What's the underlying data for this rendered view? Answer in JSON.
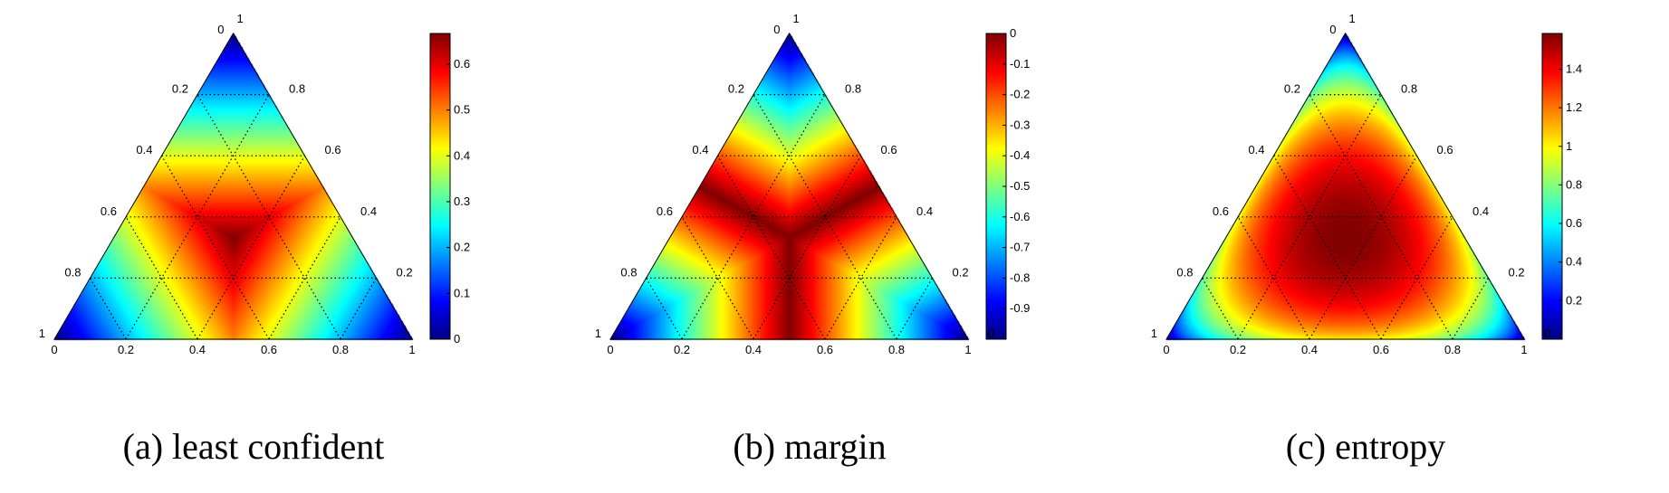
{
  "chart_data": [
    {
      "type": "heatmap",
      "subtype": "ternary",
      "caption": "(a) least confident",
      "colormap": "jet",
      "grid": true,
      "value_range": [
        0,
        0.667
      ],
      "colorbar": {
        "ticks": [
          "0",
          "0.1",
          "0.2",
          "0.3",
          "0.4",
          "0.5",
          "0.6"
        ],
        "tick_values": [
          0,
          0.1,
          0.2,
          0.3,
          0.4,
          0.5,
          0.6
        ]
      },
      "left_axis_labels": [
        "0",
        "0.2",
        "0.4",
        "0.6",
        "0.8",
        "1"
      ],
      "right_axis_labels": [
        "1",
        "0.8",
        "0.6",
        "0.4",
        "0.2"
      ],
      "bottom_axis_labels": [
        "0",
        "0.2",
        "0.4",
        "0.6",
        "0.8",
        "1"
      ],
      "measure": "least_confident"
    },
    {
      "type": "heatmap",
      "subtype": "ternary",
      "caption": "(b) margin",
      "colormap": "jet",
      "grid": true,
      "value_range": [
        -1,
        0
      ],
      "colorbar": {
        "ticks": [
          "0",
          "-0.1",
          "-0.2",
          "-0.3",
          "-0.4",
          "-0.5",
          "-0.6",
          "-0.7",
          "-0.8",
          "-0.9"
        ],
        "tick_values": [
          0,
          -0.1,
          -0.2,
          -0.3,
          -0.4,
          -0.5,
          -0.6,
          -0.7,
          -0.8,
          -0.9
        ]
      },
      "left_axis_labels": [
        "0",
        "0.2",
        "0.4",
        "0.6",
        "0.8",
        "1"
      ],
      "right_axis_labels": [
        "1",
        "0.8",
        "0.6",
        "0.4",
        "0.2",
        "0"
      ],
      "bottom_axis_labels": [
        "0",
        "0.2",
        "0.4",
        "0.6",
        "0.8",
        "1"
      ],
      "measure": "margin"
    },
    {
      "type": "heatmap",
      "subtype": "ternary",
      "caption": "(c) entropy",
      "colormap": "jet",
      "grid": true,
      "value_range": [
        0,
        1.585
      ],
      "colorbar": {
        "ticks": [
          "0.2",
          "0.4",
          "0.6",
          "0.8",
          "1",
          "1.2",
          "1.4"
        ],
        "tick_values": [
          0.2,
          0.4,
          0.6,
          0.8,
          1.0,
          1.2,
          1.4
        ]
      },
      "left_axis_labels": [
        "0",
        "0.2",
        "0.4",
        "0.6",
        "0.8",
        "1"
      ],
      "right_axis_labels": [
        "1",
        "0.8",
        "0.6",
        "0.4",
        "0.2",
        "0"
      ],
      "bottom_axis_labels": [
        "0",
        "0.2",
        "0.4",
        "0.6",
        "0.8",
        "1"
      ],
      "measure": "entropy"
    }
  ]
}
